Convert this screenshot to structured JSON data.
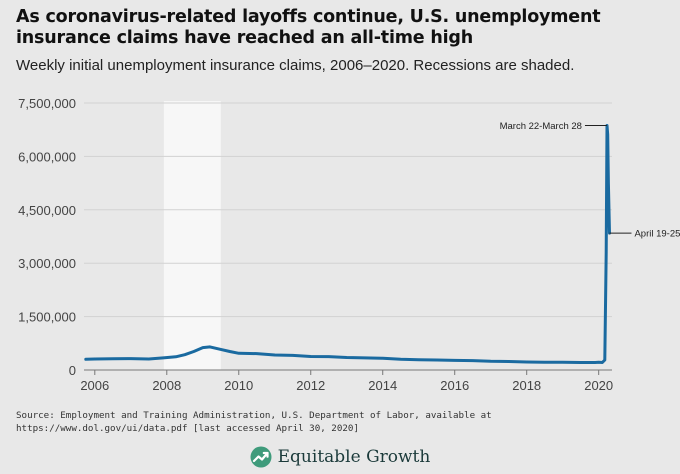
{
  "title": "As coronavirus-related layoffs continue, U.S. unemployment insurance claims have reached an all-time high",
  "subtitle": "Weekly initial unemployment insurance claims, 2006–2020. Recessions are shaded.",
  "source": "Source: Employment and Training Administration, U.S. Department of Labor, available at https://www.dol.gov/ui/data.pdf [last accessed April 30, 2020]",
  "footer": {
    "brand": "Equitable Growth"
  },
  "colors": {
    "line": "#1a6aa0",
    "recession": "#f7f7f7",
    "grid": "#d2d2d2",
    "background": "#e8e8e8"
  },
  "icons": {
    "logo": "growth-arrow-icon"
  },
  "chart_data": {
    "type": "line",
    "title": "",
    "xlabel": "",
    "ylabel": "",
    "xlim": [
      2005.7,
      2020.37
    ],
    "ylim": [
      0,
      7500000
    ],
    "yticks": [
      0,
      1500000,
      3000000,
      4500000,
      6000000,
      7500000
    ],
    "ytick_labels": [
      "0",
      "1,500,000",
      "3,000,000",
      "4,500,000",
      "6,000,000",
      "7,500,000"
    ],
    "xticks": [
      2006,
      2008,
      2010,
      2012,
      2014,
      2016,
      2018,
      2020
    ],
    "xtick_labels": [
      "2006",
      "2008",
      "2010",
      "2012",
      "2014",
      "2016",
      "2018",
      "2020"
    ],
    "grid": true,
    "recessions": [
      [
        2007.92,
        2009.5
      ]
    ],
    "annotations": [
      {
        "label": "March 22-March 28",
        "x": 2020.23,
        "y": 6867000,
        "side": "left"
      },
      {
        "label": "April 19-25",
        "x": 2020.3,
        "y": 3846000,
        "side": "right"
      }
    ],
    "series": [
      {
        "x": [
          2005.75,
          2006.0,
          2006.5,
          2007.0,
          2007.5,
          2007.9,
          2008.25,
          2008.5,
          2008.75,
          2009.0,
          2009.2,
          2009.5,
          2009.75,
          2010.0,
          2010.5,
          2011.0,
          2011.5,
          2012.0,
          2012.5,
          2013.0,
          2013.5,
          2014.0,
          2014.5,
          2015.0,
          2015.5,
          2016.0,
          2016.5,
          2017.0,
          2017.5,
          2018.0,
          2018.5,
          2019.0,
          2019.5,
          2019.9,
          2020.0,
          2020.1,
          2020.17,
          2020.21,
          2020.23,
          2020.25,
          2020.27,
          2020.3
        ],
        "y": [
          300000,
          310000,
          315000,
          320000,
          310000,
          340000,
          370000,
          430000,
          520000,
          630000,
          650000,
          580000,
          520000,
          470000,
          460000,
          420000,
          410000,
          380000,
          375000,
          350000,
          340000,
          330000,
          300000,
          290000,
          280000,
          270000,
          265000,
          245000,
          240000,
          225000,
          218000,
          215000,
          210000,
          212000,
          215000,
          211000,
          282000,
          3307000,
          6867000,
          6615000,
          5237000,
          3846000
        ]
      }
    ]
  }
}
